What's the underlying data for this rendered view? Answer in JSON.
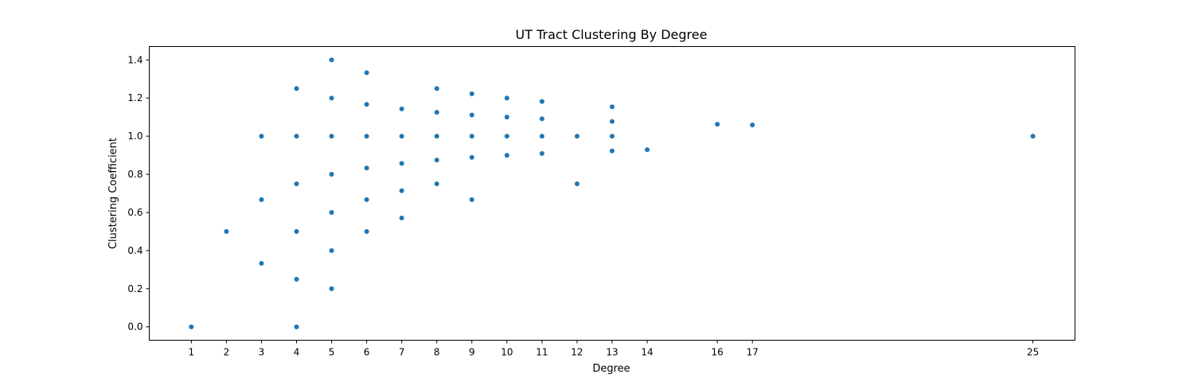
{
  "chart_data": {
    "type": "scatter",
    "title": "UT Tract Clustering By Degree",
    "xlabel": "Degree",
    "ylabel": "Clustering Coefficient",
    "xlim": [
      -0.2,
      26.2
    ],
    "ylim": [
      -0.07,
      1.47
    ],
    "x_ticks": [
      1,
      2,
      3,
      4,
      5,
      6,
      7,
      8,
      9,
      10,
      11,
      12,
      13,
      14,
      16,
      17,
      25
    ],
    "y_ticks": [
      0.0,
      0.2,
      0.4,
      0.6,
      0.8,
      1.0,
      1.2,
      1.4
    ],
    "y_tick_labels": [
      "0.0",
      "0.2",
      "0.4",
      "0.6",
      "0.8",
      "1.0",
      "1.2",
      "1.4"
    ],
    "grid": false,
    "marker_color": "#1f77b4",
    "points": [
      [
        1,
        0.0
      ],
      [
        2,
        0.5
      ],
      [
        3,
        0.333
      ],
      [
        3,
        0.667
      ],
      [
        3,
        1.0
      ],
      [
        4,
        0.0
      ],
      [
        4,
        0.25
      ],
      [
        4,
        0.5
      ],
      [
        4,
        0.75
      ],
      [
        4,
        1.0
      ],
      [
        4,
        1.25
      ],
      [
        5,
        0.2
      ],
      [
        5,
        0.4
      ],
      [
        5,
        0.6
      ],
      [
        5,
        0.8
      ],
      [
        5,
        1.0
      ],
      [
        5,
        1.2
      ],
      [
        5,
        1.4
      ],
      [
        6,
        0.5
      ],
      [
        6,
        0.667
      ],
      [
        6,
        0.833
      ],
      [
        6,
        1.0
      ],
      [
        6,
        1.167
      ],
      [
        6,
        1.333
      ],
      [
        7,
        0.571
      ],
      [
        7,
        0.714
      ],
      [
        7,
        0.857
      ],
      [
        7,
        1.0
      ],
      [
        7,
        1.143
      ],
      [
        8,
        0.75
      ],
      [
        8,
        0.875
      ],
      [
        8,
        1.0
      ],
      [
        8,
        1.125
      ],
      [
        8,
        1.25
      ],
      [
        9,
        0.667
      ],
      [
        9,
        0.889
      ],
      [
        9,
        1.0
      ],
      [
        9,
        1.111
      ],
      [
        9,
        1.222
      ],
      [
        10,
        0.9
      ],
      [
        10,
        1.0
      ],
      [
        10,
        1.1
      ],
      [
        10,
        1.2
      ],
      [
        11,
        0.909
      ],
      [
        11,
        1.0
      ],
      [
        11,
        1.091
      ],
      [
        11,
        1.182
      ],
      [
        12,
        0.75
      ],
      [
        12,
        1.0
      ],
      [
        13,
        0.923
      ],
      [
        13,
        1.0
      ],
      [
        13,
        1.077
      ],
      [
        13,
        1.154
      ],
      [
        14,
        0.929
      ],
      [
        16,
        1.0625
      ],
      [
        17,
        1.059
      ],
      [
        25,
        1.0
      ]
    ]
  }
}
